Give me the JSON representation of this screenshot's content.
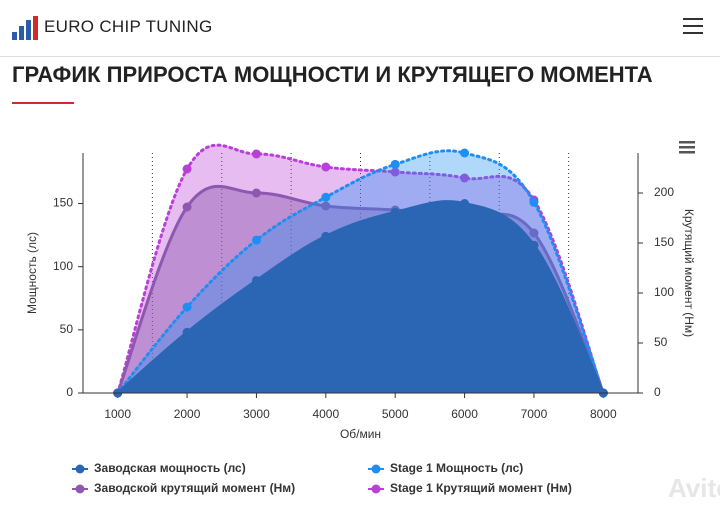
{
  "header": {
    "brand": "EURO CHIP TUNING"
  },
  "heading": "ГРАФИК ПРИРОСТА МОЩНОСТИ И КРУТЯЩЕГО МОМЕНТА",
  "watermark": "Avito",
  "chart_data": {
    "type": "area",
    "x_label": "Об/мин",
    "y_label": "Мощность (лс)",
    "y2_label": "Крутящий момент (Нм)",
    "x": [
      1000,
      2000,
      3000,
      4000,
      5000,
      6000,
      7000,
      8000
    ],
    "xlim": [
      500,
      8500
    ],
    "xticks": [
      1000,
      2000,
      3000,
      4000,
      5000,
      6000,
      7000,
      8000
    ],
    "ylim": [
      0,
      190
    ],
    "yticks": [
      0,
      50,
      100,
      150
    ],
    "y2lim": [
      0,
      240
    ],
    "y2ticks": [
      0,
      50,
      100,
      150,
      200
    ],
    "legend": "bottom",
    "series": [
      {
        "name": "Stage 1 Крутящий момент (Нм)",
        "color": "#b93fd8",
        "axis": "y2",
        "dashed": true,
        "values": [
          0,
          224,
          239,
          226,
          221,
          215,
          193,
          0
        ]
      },
      {
        "name": "Заводской крутящий момент (Нм)",
        "color": "#8e58b0",
        "axis": "y2",
        "dashed": false,
        "values": [
          0,
          186,
          200,
          187,
          183,
          177,
          160,
          0
        ]
      },
      {
        "name": "Stage 1 Мощность (лс)",
        "color": "#1e8ff2",
        "axis": "y",
        "dashed": true,
        "values": [
          0,
          68,
          121,
          155,
          181,
          190,
          151,
          0
        ]
      },
      {
        "name": "Заводская мощность (лс)",
        "color": "#2a66b4",
        "axis": "y",
        "dashed": false,
        "values": [
          0,
          48,
          89,
          124,
          143,
          150,
          117,
          0
        ]
      }
    ]
  }
}
